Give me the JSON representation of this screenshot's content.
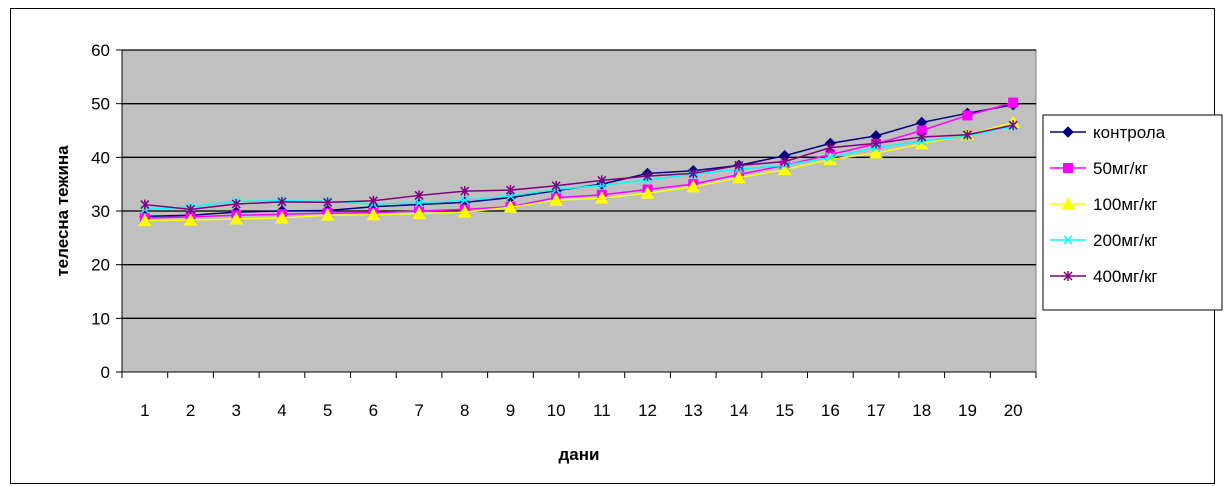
{
  "chart_data": {
    "type": "line",
    "title": "",
    "xlabel": "дани",
    "ylabel": "телесна тежина",
    "categories": [
      "1",
      "2",
      "3",
      "4",
      "5",
      "6",
      "7",
      "8",
      "9",
      "10",
      "11",
      "12",
      "13",
      "14",
      "15",
      "16",
      "17",
      "18",
      "19",
      "20"
    ],
    "ylim": [
      0,
      60
    ],
    "yticks": [
      0,
      10,
      20,
      30,
      40,
      50,
      60
    ],
    "grid": true,
    "plot_background": "#c0c0c0",
    "legend_position": "right",
    "series": [
      {
        "name": "контрола",
        "color": "#000080",
        "marker": "diamond",
        "values": [
          29.0,
          29.2,
          29.8,
          30.0,
          30.1,
          30.8,
          31.2,
          31.6,
          32.5,
          33.8,
          35.0,
          37.0,
          37.5,
          38.5,
          40.3,
          42.6,
          44.0,
          46.5,
          48.2,
          49.8
        ]
      },
      {
        "name": "50мг/кг",
        "color": "#ff00ff",
        "marker": "square",
        "values": [
          28.7,
          28.9,
          29.2,
          29.4,
          29.6,
          29.7,
          30.0,
          30.3,
          30.8,
          32.5,
          33.0,
          34.0,
          35.0,
          36.8,
          38.5,
          40.5,
          42.5,
          45.0,
          47.8,
          50.2
        ]
      },
      {
        "name": "100мг/кг",
        "color": "#ffff00",
        "marker": "triangle",
        "values": [
          28.2,
          28.3,
          28.5,
          28.7,
          29.2,
          29.3,
          29.5,
          29.8,
          30.7,
          32.0,
          32.4,
          33.3,
          34.5,
          36.2,
          37.7,
          39.6,
          40.8,
          42.5,
          44.2,
          46.5
        ]
      },
      {
        "name": "200мг/кг",
        "color": "#00ffff",
        "marker": "x",
        "values": [
          30.3,
          30.8,
          31.8,
          31.9,
          31.8,
          31.3,
          31.5,
          32.0,
          32.8,
          34.0,
          34.8,
          35.8,
          36.8,
          37.8,
          38.5,
          40.0,
          41.8,
          43.0,
          44.0,
          45.8
        ]
      },
      {
        "name": "400мг/кг",
        "color": "#800080",
        "marker": "star",
        "values": [
          31.2,
          30.3,
          31.3,
          31.7,
          31.6,
          31.9,
          32.9,
          33.7,
          33.9,
          34.7,
          35.7,
          36.5,
          37.0,
          38.5,
          39.2,
          41.8,
          42.6,
          43.8,
          44.2,
          46.0
        ]
      }
    ]
  }
}
